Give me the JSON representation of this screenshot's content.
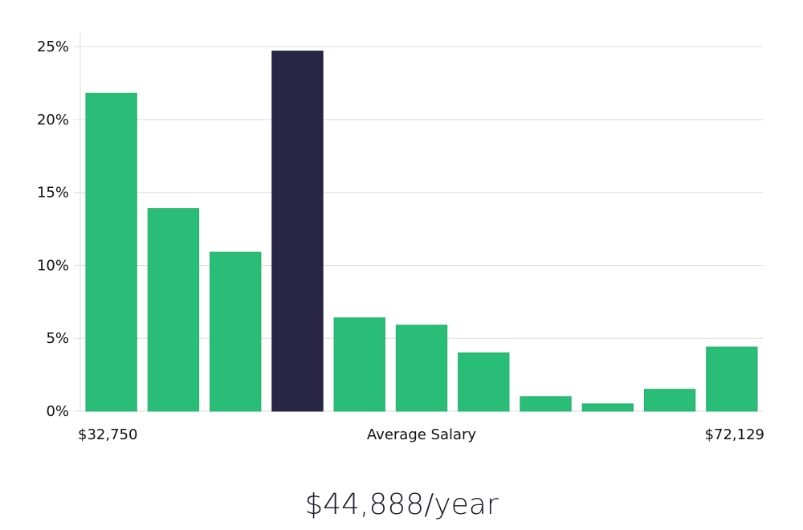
{
  "headline": "$44,888/year",
  "colors": {
    "bar": "#2abd77",
    "highlight_bar": "#282545",
    "grid": "#dddddd",
    "text": "#111111"
  },
  "chart_data": {
    "type": "bar",
    "categories": [
      "1",
      "2",
      "3",
      "4",
      "5",
      "6",
      "7",
      "8",
      "9",
      "10",
      "11"
    ],
    "values": [
      21.8,
      13.9,
      10.9,
      24.7,
      6.4,
      5.9,
      4.0,
      1.0,
      0.5,
      1.5,
      4.4
    ],
    "highlight_index": 3,
    "ylim": [
      0,
      26
    ],
    "yticks": [
      0,
      5,
      10,
      15,
      20,
      25
    ],
    "ytick_labels": [
      "0%",
      "5%",
      "10%",
      "15%",
      "20%",
      "25%"
    ],
    "x_min_label": "$32,750",
    "x_max_label": "$72,129",
    "xlabel": "Average Salary",
    "grid": true
  }
}
